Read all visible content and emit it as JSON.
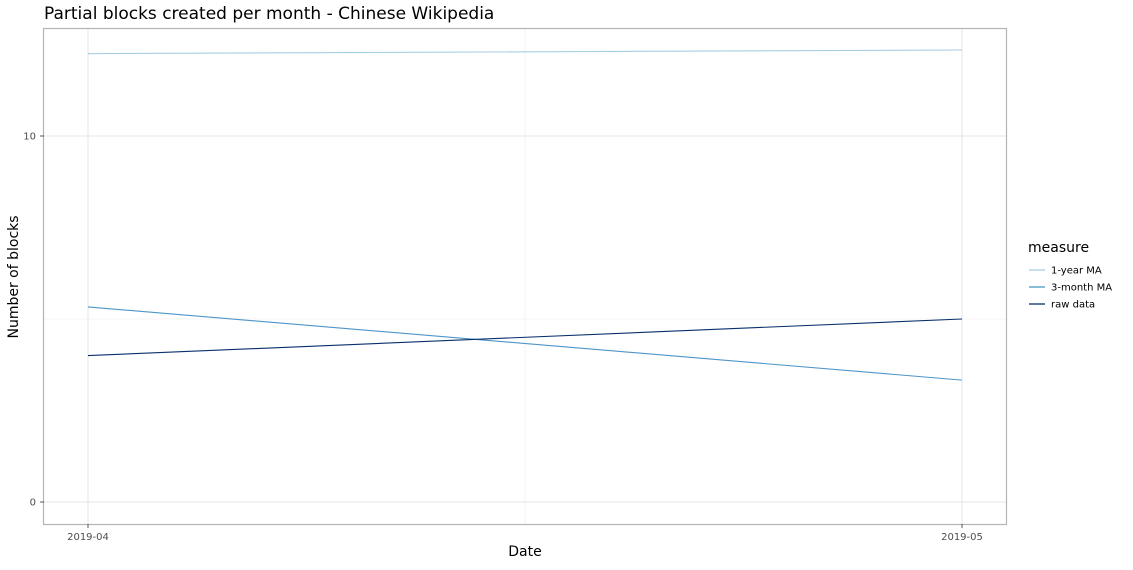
{
  "chart_data": {
    "type": "line",
    "title": "Partial blocks created per month - Chinese Wikipedia",
    "xlabel": "Date",
    "ylabel": "Number of blocks",
    "x": [
      "2019-04",
      "2019-05"
    ],
    "x_tick_labels": [
      "2019-04",
      "2019-05"
    ],
    "y_ticks": [
      0,
      10
    ],
    "ylim": [
      -0.55,
      13.0
    ],
    "grid": true,
    "legend": {
      "title": "measure",
      "placement": "right"
    },
    "series": [
      {
        "name": "1-year MA",
        "values": [
          12.25,
          12.35
        ],
        "color": "#a6cee3"
      },
      {
        "name": "3-month MA",
        "values": [
          5.33,
          3.33
        ],
        "color": "#4d95c8"
      },
      {
        "name": "raw data",
        "values": [
          4.0,
          5.0
        ],
        "color": "#08306b"
      }
    ]
  }
}
